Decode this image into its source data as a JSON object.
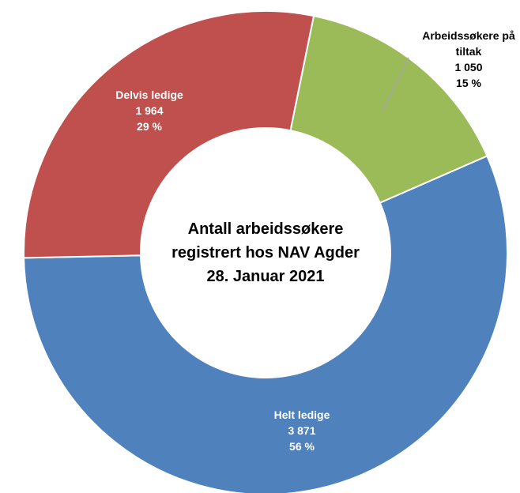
{
  "chart_data": {
    "type": "donut",
    "title": "Antall arbeidssøkere registrert hos NAV Agder 28. Januar 2021",
    "categories": [
      "Arbeidssøkere på tiltak",
      "Helt ledige",
      "Delvis ledige"
    ],
    "values": [
      1050,
      3871,
      1964
    ],
    "value_labels": [
      "1 050",
      "3 871",
      "1 964"
    ],
    "percent_labels": [
      "15 %",
      "56 %",
      "29 %"
    ],
    "colors": [
      "#9bbb59",
      "#4f81bd",
      "#c0504d"
    ]
  }
}
